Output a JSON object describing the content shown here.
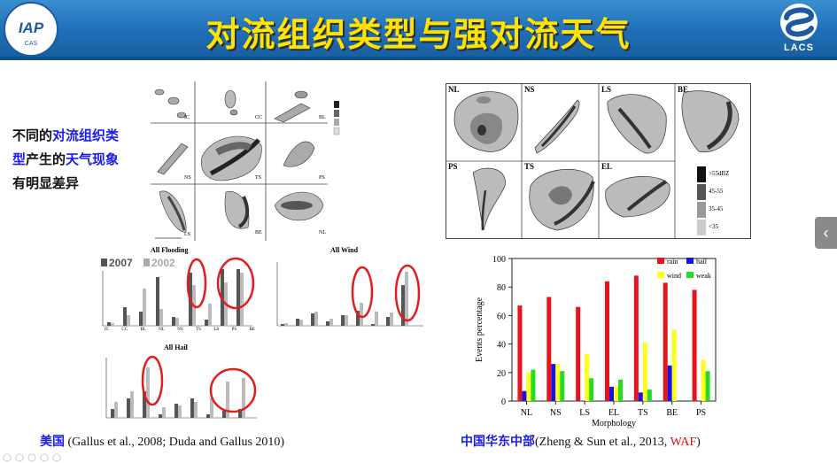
{
  "header": {
    "title": "对流组织类型与强对流天气",
    "logo_left_text": "IAP",
    "logo_left_sub": "CAS",
    "logo_right_text": "LACS"
  },
  "description": {
    "line1_a": "不同的",
    "line1_b": "对流组织类",
    "line2_a": "型",
    "line2_b": "产生的",
    "line2_c": "天气现象",
    "line3": "有明显差异"
  },
  "left_figure": {
    "panels": [
      "IC",
      "CC",
      "BL",
      "NS",
      "TS",
      "PS",
      "LS",
      "BE",
      "NL"
    ],
    "legend": [
      "",
      "",
      "",
      ""
    ],
    "flooding_title": "All Flooding",
    "wind_title": "All Wind",
    "hail_title": "All Hail",
    "legend_2007": "2007",
    "legend_2002": "2002",
    "categories": [
      "IC",
      "CC",
      "BL",
      "NL",
      "NS",
      "TS",
      "LS",
      "PS",
      "BE"
    ]
  },
  "right_figure": {
    "panels": [
      "NL",
      "NS",
      "LS",
      "BE",
      "PS",
      "TS",
      "EL"
    ],
    "legend": [
      ">55dBZ",
      "45-55",
      "35-45",
      "<35"
    ]
  },
  "chart_data": {
    "type": "bar",
    "categories": [
      "NL",
      "NS",
      "LS",
      "EL",
      "TS",
      "BE",
      "PS"
    ],
    "series": [
      {
        "name": "rain",
        "color": "#e8141c",
        "values": [
          67,
          73,
          66,
          84,
          88,
          83,
          78
        ]
      },
      {
        "name": "hail",
        "color": "#1414e8",
        "values": [
          7,
          26,
          0,
          10,
          6,
          25,
          0
        ]
      },
      {
        "name": "wind",
        "color": "#ffff1e",
        "values": [
          20,
          26,
          33,
          10,
          41,
          50,
          29
        ]
      },
      {
        "name": "weak",
        "color": "#22dd22",
        "values": [
          22,
          21,
          16,
          15,
          8,
          0,
          21
        ]
      }
    ],
    "xlabel": "Morphology",
    "ylabel": "Events percentage",
    "ylim": [
      0,
      100
    ],
    "yticks": [
      "0",
      "20",
      "40",
      "60",
      "80",
      "100"
    ],
    "legend_position": "top-right"
  },
  "captions": {
    "left_cn": "美国",
    "left_en": " (Gallus et al., 2008; Duda and Gallus 2010)",
    "right_cn": "中国华东中部",
    "right_en": "(Zheng & Sun et al., 2013, ",
    "right_waf": "WAF",
    "right_end": ")"
  },
  "side_tab": "‹"
}
